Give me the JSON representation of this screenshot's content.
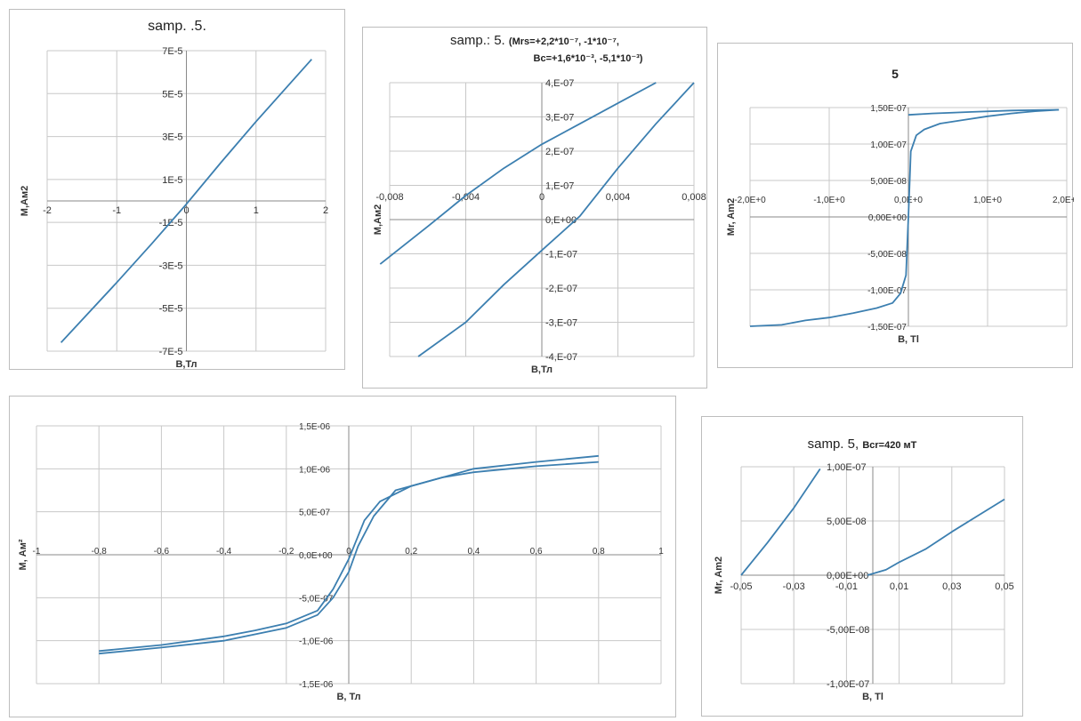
{
  "chart_data": [
    {
      "type": "line",
      "title": "samp. .5.",
      "xlabel": "B,Тл",
      "ylabel": "M,Ам2",
      "xlim": [
        -2,
        2
      ],
      "ylim": [
        -7e-05,
        7e-05
      ],
      "x_ticks": [
        -2,
        -1,
        0,
        1,
        2
      ],
      "x_tick_labels": [
        "-2",
        "-1",
        "0",
        "1",
        "2"
      ],
      "y_ticks": [
        7e-05,
        5e-05,
        3e-05,
        1e-05,
        -1e-05,
        -3e-05,
        -5e-05,
        -7e-05
      ],
      "y_tick_labels": [
        "7E-5",
        "5E-5",
        "3E-5",
        "1E-5",
        "-1E-5",
        "-3E-5",
        "-5E-5",
        "-7E-5"
      ],
      "grid": true,
      "series": [
        {
          "color": "#3c7fb0",
          "x": [
            -1.8,
            -1.0,
            -0.5,
            0.0,
            0.5,
            1.0,
            1.8
          ],
          "y": [
            -6.6e-05,
            -3.8e-05,
            -2e-05,
            -1.5e-06,
            1.8e-05,
            3.7e-05,
            6.6e-05
          ]
        }
      ]
    },
    {
      "type": "line",
      "title": "samp.: 5.",
      "title_extra": "(Mrs=+2,2*10⁻⁷, -1*10⁻⁷,",
      "title_line2": "Bc=+1,6*10⁻³, -5,1*10⁻³)",
      "xlabel": "B,Тл",
      "ylabel": "M,Ам2",
      "xlim": [
        -0.008,
        0.008
      ],
      "ylim": [
        -4e-07,
        4e-07
      ],
      "x_ticks": [
        -0.008,
        -0.004,
        0,
        0.004,
        0.008
      ],
      "x_tick_labels": [
        "-0,008",
        "-0,004",
        "0",
        "0,004",
        "0,008"
      ],
      "y_ticks": [
        4e-07,
        3e-07,
        2e-07,
        1e-07,
        0,
        -1e-07,
        -2e-07,
        -3e-07,
        -4e-07
      ],
      "y_tick_labels": [
        "4,E-07",
        "3,E-07",
        "2,E-07",
        "1,E-07",
        "0,E+00",
        "-1,E-07",
        "-2,E-07",
        "-3,E-07",
        "-4,E-07"
      ],
      "grid": true,
      "series": [
        {
          "color": "#3c7fb0",
          "x": [
            -0.0085,
            -0.006,
            -0.004,
            -0.002,
            0.0,
            0.002,
            0.004,
            0.006
          ],
          "y": [
            -1.3e-07,
            -2e-08,
            7e-08,
            1.5e-07,
            2.2e-07,
            2.8e-07,
            3.4e-07,
            4e-07
          ]
        },
        {
          "color": "#3c7fb0",
          "x": [
            -0.0065,
            -0.004,
            -0.002,
            0.0,
            0.002,
            0.004,
            0.006,
            0.008
          ],
          "y": [
            -4e-07,
            -3e-07,
            -1.9e-07,
            -9e-08,
            1e-08,
            1.5e-07,
            2.8e-07,
            4e-07
          ]
        }
      ]
    },
    {
      "type": "line",
      "title": "5",
      "xlabel": "B, Tl",
      "ylabel": "Mr, Am2",
      "xlim": [
        -2,
        2
      ],
      "ylim": [
        -1.5e-07,
        1.5e-07
      ],
      "x_ticks": [
        -2,
        -1,
        0,
        1,
        2
      ],
      "x_tick_labels": [
        "-2,0E+0",
        "-1,0E+0",
        "0,0E+0",
        "1,0E+0",
        "2,0E+0"
      ],
      "y_ticks": [
        1.5e-07,
        1e-07,
        5e-08,
        0,
        -5e-08,
        -1e-07,
        -1.5e-07
      ],
      "y_tick_labels": [
        "1,50E-07",
        "1,00E-07",
        "5,00E-08",
        "0,00E+00",
        "-5,00E-08",
        "-1,00E-07",
        "-1,50E-07"
      ],
      "grid": true,
      "series": [
        {
          "color": "#3c7fb0",
          "x": [
            -2.0,
            -1.6,
            -1.3,
            -1.0,
            -0.7,
            -0.4,
            -0.2,
            -0.1,
            -0.03,
            0.0,
            0.03,
            0.1,
            0.2,
            0.4,
            0.7,
            1.0,
            1.3,
            1.6,
            1.9
          ],
          "y": [
            -1.5e-07,
            -1.48e-07,
            -1.42e-07,
            -1.38e-07,
            -1.32e-07,
            -1.25e-07,
            -1.18e-07,
            -1.05e-07,
            -8e-08,
            0,
            9e-08,
            1.12e-07,
            1.2e-07,
            1.28e-07,
            1.33e-07,
            1.38e-07,
            1.42e-07,
            1.45e-07,
            1.47e-07
          ]
        },
        {
          "color": "#3c7fb0",
          "x": [
            0.0,
            0.3,
            0.8,
            1.3,
            1.9
          ],
          "y": [
            1.4e-07,
            1.42e-07,
            1.44e-07,
            1.46e-07,
            1.47e-07
          ]
        }
      ]
    },
    {
      "type": "line",
      "title": "",
      "xlabel": "B, Тл",
      "ylabel": "M, Ам²",
      "xlim": [
        -1,
        1
      ],
      "ylim": [
        -1.5e-06,
        1.5e-06
      ],
      "x_ticks": [
        -1,
        -0.8,
        -0.6,
        -0.4,
        -0.2,
        0,
        0.2,
        0.4,
        0.6,
        0.8,
        1
      ],
      "x_tick_labels": [
        "-1",
        "-0,8",
        "-0,6",
        "-0,4",
        "-0,2",
        "0",
        "0,2",
        "0,4",
        "0,6",
        "0,8",
        "1"
      ],
      "y_ticks": [
        1.5e-06,
        1e-06,
        5e-07,
        0,
        -5e-07,
        -1e-06,
        -1.5e-06
      ],
      "y_tick_labels": [
        "1,5E-06",
        "1,0E-06",
        "5,0E-07",
        "0,0E+00",
        "-5,0E-07",
        "-1,0E-06",
        "-1,5E-06"
      ],
      "grid": true,
      "series": [
        {
          "color": "#3c7fb0",
          "x": [
            -0.8,
            -0.6,
            -0.4,
            -0.3,
            -0.2,
            -0.1,
            -0.05,
            0.0,
            0.05,
            0.1,
            0.2,
            0.3,
            0.4,
            0.6,
            0.8
          ],
          "y": [
            -1.12e-06,
            -1.05e-06,
            -9.5e-07,
            -8.8e-07,
            -8e-07,
            -6.5e-07,
            -4e-07,
            -5e-08,
            4e-07,
            6.2e-07,
            8e-07,
            9e-07,
            9.6e-07,
            1.03e-06,
            1.08e-06
          ]
        },
        {
          "color": "#3c7fb0",
          "x": [
            -0.8,
            -0.6,
            -0.4,
            -0.2,
            -0.1,
            -0.05,
            0.0,
            0.03,
            0.08,
            0.15,
            0.3,
            0.4,
            0.6,
            0.8
          ],
          "y": [
            -1.15e-06,
            -1.08e-06,
            -1e-06,
            -8.5e-07,
            -7e-07,
            -5e-07,
            -2e-07,
            1e-07,
            4.5e-07,
            7.5e-07,
            9e-07,
            1e-06,
            1.08e-06,
            1.15e-06
          ]
        }
      ]
    },
    {
      "type": "line",
      "title": "samp. 5,",
      "title_extra": "Bcr=420 мT",
      "xlabel": "B, Tl",
      "ylabel": "Mr, Am2",
      "xlim": [
        -0.05,
        0.05
      ],
      "ylim": [
        -1e-07,
        1e-07
      ],
      "x_ticks": [
        -0.05,
        -0.03,
        -0.01,
        0.01,
        0.03,
        0.05
      ],
      "x_tick_labels": [
        "-0,05",
        "-0,03",
        "-0,01",
        "0,01",
        "0,03",
        "0,05"
      ],
      "y_ticks": [
        1e-07,
        5e-08,
        0,
        -5e-08,
        -1e-07
      ],
      "y_tick_labels": [
        "1,00E-07",
        "5,00E-08",
        "0,00E+00",
        "-5,00E-08",
        "-1,00E-07"
      ],
      "grid": true,
      "series": [
        {
          "color": "#3c7fb0",
          "x": [
            -0.05,
            -0.045,
            -0.04,
            -0.035,
            -0.03,
            -0.025,
            -0.02
          ],
          "y": [
            0,
            1.5e-08,
            3e-08,
            4.6e-08,
            6.2e-08,
            8e-08,
            9.8e-08
          ]
        },
        {
          "color": "#3c7fb0",
          "x": [
            -0.002,
            0.005,
            0.01,
            0.02,
            0.03,
            0.04,
            0.05
          ],
          "y": [
            0,
            5e-09,
            1.2e-08,
            2.4e-08,
            4e-08,
            5.5e-08,
            7e-08
          ]
        }
      ]
    }
  ]
}
